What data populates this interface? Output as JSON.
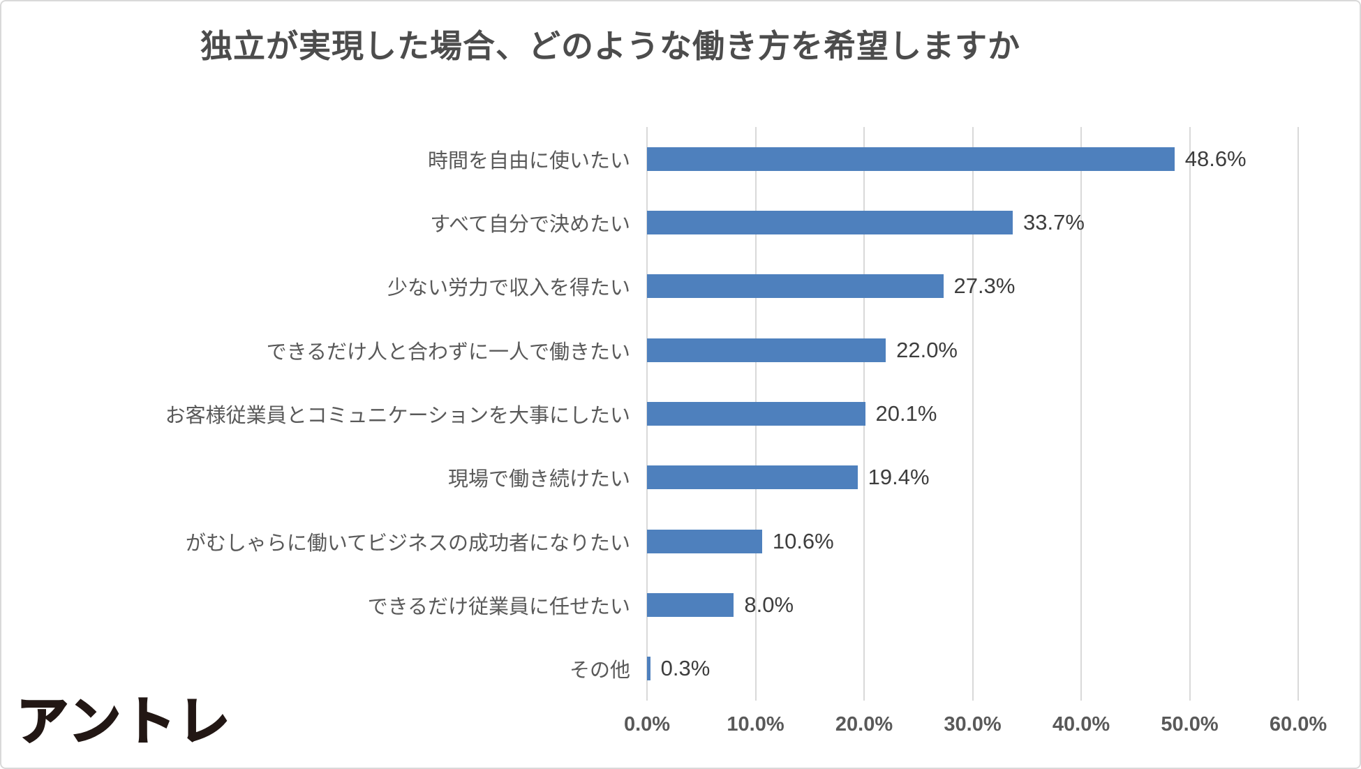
{
  "title": "独立が実現した場合、どのような働き方を希望しますか",
  "logo_text": "アントレ",
  "colors": {
    "bar": "#4e80bd",
    "gridline": "#d9d9d9",
    "title_text": "#4c4c4c",
    "category_text": "#595959",
    "value_text": "#3d3d3d",
    "logo_text": "#221714"
  },
  "chart_data": {
    "type": "bar",
    "orientation": "horizontal",
    "title": "独立が実現した場合、どのような働き方を希望しますか",
    "categories": [
      "時間を自由に使いたい",
      "すべて自分で決めたい",
      "少ない労力で収入を得たい",
      "できるだけ人と合わずに一人で働きたい",
      "お客様従業員とコミュニケーションを大事にしたい",
      "現場で働き続けたい",
      "がむしゃらに働いてビジネスの成功者になりたい",
      "できるだけ従業員に任せたい",
      "その他"
    ],
    "values": [
      48.6,
      33.7,
      27.3,
      22.0,
      20.1,
      19.4,
      10.6,
      8.0,
      0.3
    ],
    "value_labels": [
      "48.6%",
      "33.7%",
      "27.3%",
      "22.0%",
      "20.1%",
      "19.4%",
      "10.6%",
      "8.0%",
      "0.3%"
    ],
    "xlabel": "",
    "ylabel": "",
    "xlim": [
      0,
      60
    ],
    "x_ticks": [
      "0.0%",
      "10.0%",
      "20.0%",
      "30.0%",
      "40.0%",
      "50.0%",
      "60.0%"
    ],
    "grid": true,
    "legend_position": "none"
  }
}
